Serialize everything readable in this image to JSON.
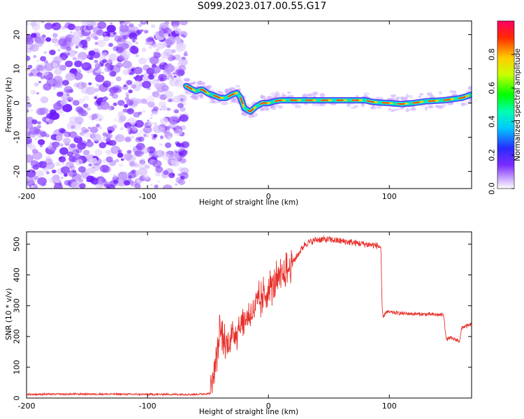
{
  "title": "S099.2023.017.00.55.G17",
  "colors": {
    "snr_line": "#e8302a",
    "noise_purple": "#7b2cff",
    "axis": "#000000"
  },
  "chart_data": [
    {
      "type": "heatmap",
      "xlabel": "Height of straight line (km)",
      "ylabel": "Frequency (Hz)",
      "xlim": [
        -200,
        168
      ],
      "ylim": [
        -25,
        24
      ],
      "xticks": [
        -200,
        -100,
        0,
        100
      ],
      "yticks": [
        20,
        10,
        0,
        -10,
        -20
      ],
      "colorbar": {
        "label": "Normalized spectral amplitude",
        "ticks": [
          0.0,
          0.2,
          0.4,
          0.6,
          0.8
        ],
        "range": [
          0,
          1
        ],
        "colormap": "rainbow"
      },
      "noise_region_x": [
        -200,
        -68
      ],
      "ridge": [
        {
          "x": -68,
          "f": 5.0
        },
        {
          "x": -64,
          "f": 4.2
        },
        {
          "x": -60,
          "f": 3.5
        },
        {
          "x": -55,
          "f": 4.0
        },
        {
          "x": -50,
          "f": 2.8
        },
        {
          "x": -45,
          "f": 2.2
        },
        {
          "x": -40,
          "f": 1.5
        },
        {
          "x": -35,
          "f": 1.5
        },
        {
          "x": -30,
          "f": 2.5
        },
        {
          "x": -26,
          "f": 3.0
        },
        {
          "x": -23,
          "f": 1.5
        },
        {
          "x": -20,
          "f": -1.5
        },
        {
          "x": -15,
          "f": -2.5
        },
        {
          "x": -10,
          "f": -1.0
        },
        {
          "x": -5,
          "f": 0.0
        },
        {
          "x": 0,
          "f": 0.0
        },
        {
          "x": 5,
          "f": 0.5
        },
        {
          "x": 10,
          "f": 0.8
        },
        {
          "x": 20,
          "f": 0.8
        },
        {
          "x": 40,
          "f": 0.8
        },
        {
          "x": 60,
          "f": 0.8
        },
        {
          "x": 80,
          "f": 0.8
        },
        {
          "x": 85,
          "f": 0.4
        },
        {
          "x": 90,
          "f": 0.2
        },
        {
          "x": 100,
          "f": 0.0
        },
        {
          "x": 110,
          "f": -0.3
        },
        {
          "x": 120,
          "f": 0.0
        },
        {
          "x": 130,
          "f": 0.5
        },
        {
          "x": 145,
          "f": 0.8
        },
        {
          "x": 160,
          "f": 1.5
        },
        {
          "x": 168,
          "f": 2.5
        }
      ]
    },
    {
      "type": "line",
      "xlabel": "Height of straight line (km)",
      "ylabel": "SNR (10 * v/v)",
      "xlim": [
        -200,
        168
      ],
      "ylim": [
        0,
        540
      ],
      "xticks": [
        -200,
        -100,
        0,
        100
      ],
      "yticks": [
        0,
        100,
        200,
        300,
        400,
        500
      ],
      "series": [
        {
          "points": [
            [
              -200,
              12
            ],
            [
              -150,
              13
            ],
            [
              -100,
              12
            ],
            [
              -60,
              12
            ],
            [
              -48,
              15
            ],
            [
              -45,
              80
            ],
            [
              -42,
              150
            ],
            [
              -40,
              220
            ],
            [
              -38,
              200
            ],
            [
              -35,
              170
            ],
            [
              -30,
              200
            ],
            [
              -25,
              230
            ],
            [
              -20,
              250
            ],
            [
              -15,
              270
            ],
            [
              -10,
              300
            ],
            [
              -5,
              320
            ],
            [
              0,
              355
            ],
            [
              5,
              370
            ],
            [
              10,
              390
            ],
            [
              15,
              410
            ],
            [
              20,
              440
            ],
            [
              25,
              470
            ],
            [
              30,
              500
            ],
            [
              40,
              515
            ],
            [
              50,
              515
            ],
            [
              60,
              510
            ],
            [
              70,
              505
            ],
            [
              80,
              500
            ],
            [
              90,
              495
            ],
            [
              93,
              490
            ],
            [
              94,
              290
            ],
            [
              95,
              260
            ],
            [
              97,
              280
            ],
            [
              110,
              275
            ],
            [
              130,
              272
            ],
            [
              145,
              270
            ],
            [
              147,
              190
            ],
            [
              150,
              195
            ],
            [
              155,
              190
            ],
            [
              158,
              185
            ],
            [
              160,
              230
            ],
            [
              165,
              235
            ],
            [
              168,
              240
            ]
          ]
        }
      ]
    }
  ]
}
